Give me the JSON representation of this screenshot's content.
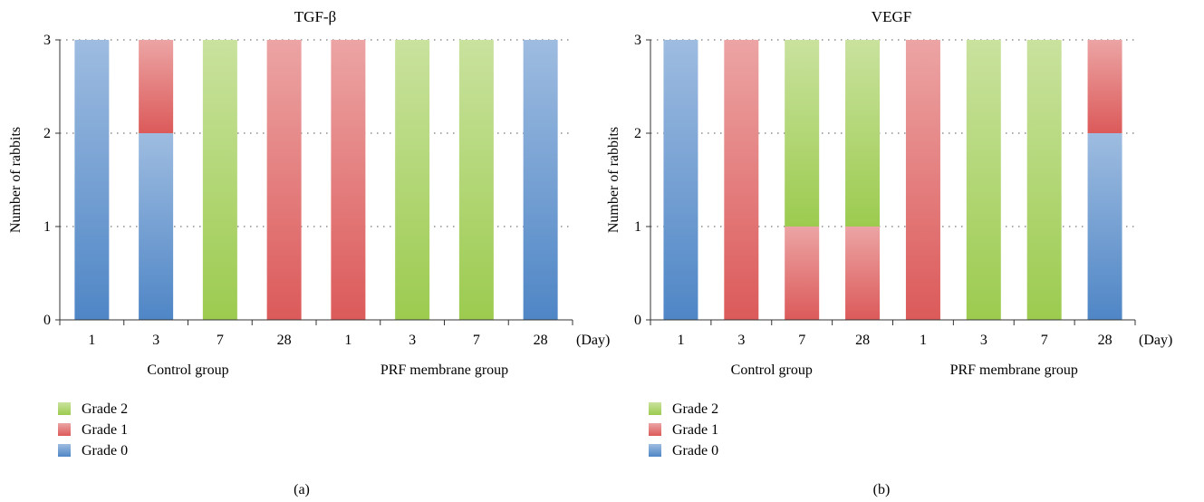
{
  "chart_data": [
    {
      "type": "bar",
      "stacked": true,
      "title": "TGF-β",
      "ylabel": "Number of rabbits",
      "xunit": "(Day)",
      "ylim": [
        0,
        3
      ],
      "yticks": [
        "0",
        "1",
        "2",
        "3"
      ],
      "categories": [
        "1",
        "3",
        "7",
        "28",
        "1",
        "3",
        "7",
        "28"
      ],
      "groups": [
        {
          "label": "Control group",
          "size": 4
        },
        {
          "label": "PRF membrane group",
          "size": 4
        }
      ],
      "series": [
        {
          "name": "Grade 0",
          "color": "#4f86c6",
          "values": [
            3,
            2,
            0,
            0,
            0,
            0,
            0,
            3
          ]
        },
        {
          "name": "Grade 1",
          "color": "#dc5a5a",
          "values": [
            0,
            1,
            0,
            3,
            3,
            0,
            0,
            0
          ]
        },
        {
          "name": "Grade 2",
          "color": "#9ccb4f",
          "values": [
            0,
            0,
            3,
            0,
            0,
            3,
            3,
            0
          ]
        }
      ],
      "legend": [
        "Grade 2",
        "Grade 1",
        "Grade 0"
      ],
      "legend_position": "bottom-left",
      "grid": "dotted horizontal",
      "panel_label": "(a)"
    },
    {
      "type": "bar",
      "stacked": true,
      "title": "VEGF",
      "ylabel": "Number of rabbits",
      "xunit": "(Day)",
      "ylim": [
        0,
        3
      ],
      "yticks": [
        "0",
        "1",
        "2",
        "3"
      ],
      "categories": [
        "1",
        "3",
        "7",
        "28",
        "1",
        "3",
        "7",
        "28"
      ],
      "groups": [
        {
          "label": "Control group",
          "size": 4
        },
        {
          "label": "PRF membrane group",
          "size": 4
        }
      ],
      "series": [
        {
          "name": "Grade 0",
          "color": "#4f86c6",
          "values": [
            3,
            0,
            0,
            0,
            0,
            0,
            0,
            2
          ]
        },
        {
          "name": "Grade 1",
          "color": "#dc5a5a",
          "values": [
            0,
            3,
            1,
            1,
            3,
            0,
            0,
            1
          ]
        },
        {
          "name": "Grade 2",
          "color": "#9ccb4f",
          "values": [
            0,
            0,
            2,
            2,
            0,
            3,
            3,
            0
          ]
        }
      ],
      "legend": [
        "Grade 2",
        "Grade 1",
        "Grade 0"
      ],
      "legend_position": "bottom-left",
      "grid": "dotted horizontal",
      "panel_label": "(b)"
    }
  ]
}
